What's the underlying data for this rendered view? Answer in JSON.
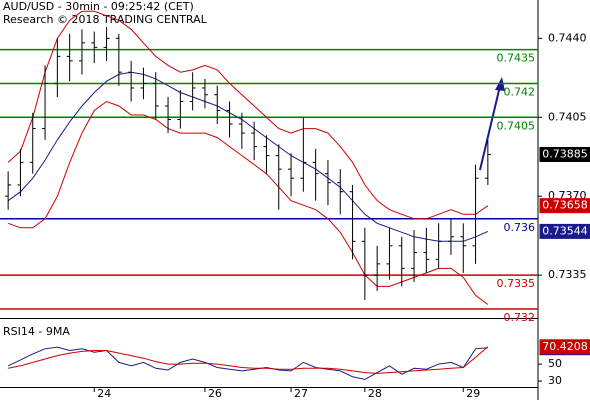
{
  "chart_data": [
    {
      "type": "ohlc",
      "title": "AUD/USD - 30min - 09:25:42 (CET)",
      "subtitle": "Research © 2018 TRADING CENTRAL",
      "color": "#000000",
      "open": [
        0.737,
        0.7375,
        0.7385,
        0.74,
        0.742,
        0.7432,
        0.743,
        0.7438,
        0.7436,
        0.744,
        0.7425,
        0.7418,
        0.742,
        0.741,
        0.7404,
        0.7412,
        0.7418,
        0.7415,
        0.7408,
        0.7402,
        0.7398,
        0.7392,
        0.7388,
        0.7382,
        0.7378,
        0.7385,
        0.738,
        0.7376,
        0.7372,
        0.735,
        0.7335,
        0.734,
        0.7348,
        0.7338,
        0.7345,
        0.7342,
        0.735,
        0.7352,
        0.7348,
        0.7378
      ],
      "high": [
        0.7381,
        0.7391,
        0.7407,
        0.7428,
        0.744,
        0.7442,
        0.7444,
        0.7443,
        0.7445,
        0.7442,
        0.743,
        0.7427,
        0.7425,
        0.7414,
        0.7417,
        0.7425,
        0.7422,
        0.7419,
        0.7412,
        0.7407,
        0.7403,
        0.7397,
        0.7393,
        0.7389,
        0.7405,
        0.7391,
        0.7386,
        0.7382,
        0.7375,
        0.7356,
        0.7348,
        0.7356,
        0.7352,
        0.7355,
        0.7356,
        0.7358,
        0.736,
        0.7358,
        0.7384,
        0.7395
      ],
      "low": [
        0.7364,
        0.737,
        0.738,
        0.7395,
        0.7414,
        0.7421,
        0.7424,
        0.7429,
        0.743,
        0.7419,
        0.7412,
        0.7413,
        0.7404,
        0.7398,
        0.74,
        0.7408,
        0.7409,
        0.7402,
        0.7396,
        0.7391,
        0.7386,
        0.738,
        0.7364,
        0.737,
        0.7372,
        0.7368,
        0.7366,
        0.7362,
        0.7342,
        0.7324,
        0.7328,
        0.7333,
        0.733,
        0.7332,
        0.7336,
        0.7338,
        0.7344,
        0.7336,
        0.734,
        0.7375
      ],
      "close": [
        0.7375,
        0.7385,
        0.74,
        0.742,
        0.7432,
        0.743,
        0.7438,
        0.7436,
        0.744,
        0.7425,
        0.7418,
        0.742,
        0.741,
        0.7404,
        0.7412,
        0.7418,
        0.7415,
        0.7408,
        0.7402,
        0.7398,
        0.7392,
        0.7388,
        0.7382,
        0.7378,
        0.7385,
        0.738,
        0.7376,
        0.7372,
        0.735,
        0.7335,
        0.734,
        0.7348,
        0.7338,
        0.7345,
        0.7342,
        0.735,
        0.7352,
        0.7348,
        0.7378,
        0.73885
      ],
      "label_last": true,
      "series": [
        {
          "color": "#1a1a8c",
          "label_last": true,
          "values": [
            0.7368,
            0.7372,
            0.7378,
            0.7386,
            0.7395,
            0.7403,
            0.741,
            0.7416,
            0.7421,
            0.7424,
            0.7425,
            0.7424,
            0.7422,
            0.7419,
            0.7416,
            0.7414,
            0.7412,
            0.741,
            0.7407,
            0.7404,
            0.74,
            0.7396,
            0.7392,
            0.7388,
            0.7385,
            0.7382,
            0.7378,
            0.7374,
            0.7368,
            0.7362,
            0.7358,
            0.7356,
            0.7354,
            0.7352,
            0.7351,
            0.735,
            0.735,
            0.735,
            0.7352,
            0.73544
          ]
        },
        {
          "color": "#cc0000",
          "label_last": true,
          "values": [
            0.7385,
            0.739,
            0.7405,
            0.7425,
            0.744,
            0.7448,
            0.7452,
            0.7452,
            0.745,
            0.7448,
            0.7444,
            0.7438,
            0.7432,
            0.7428,
            0.7425,
            0.7426,
            0.7428,
            0.7426,
            0.742,
            0.7415,
            0.741,
            0.7405,
            0.74,
            0.7398,
            0.74,
            0.74,
            0.7398,
            0.7392,
            0.7385,
            0.7375,
            0.7368,
            0.7364,
            0.7362,
            0.736,
            0.736,
            0.7362,
            0.7364,
            0.7362,
            0.7362,
            0.73658
          ]
        },
        {
          "color": "#cc0000",
          "values": [
            0.7358,
            0.7356,
            0.7356,
            0.736,
            0.737,
            0.7385,
            0.7398,
            0.7408,
            0.7412,
            0.741,
            0.7406,
            0.7406,
            0.7404,
            0.74,
            0.7398,
            0.7398,
            0.7398,
            0.7396,
            0.7392,
            0.7388,
            0.7384,
            0.738,
            0.7374,
            0.7368,
            0.7366,
            0.7364,
            0.736,
            0.7354,
            0.7345,
            0.7335,
            0.733,
            0.733,
            0.7332,
            0.7334,
            0.7336,
            0.7338,
            0.7338,
            0.7334,
            0.7326,
            0.7322
          ]
        }
      ],
      "levels": [
        {
          "value": 0.7435,
          "color": "#008000"
        },
        {
          "value": 0.742,
          "color": "#008000"
        },
        {
          "value": 0.7405,
          "color": "#008000"
        },
        {
          "value": 0.736,
          "color": "#0000a0"
        },
        {
          "value": 0.7335,
          "color": "#cc0000"
        },
        {
          "value": 0.732,
          "color": "#cc0000"
        }
      ],
      "ylim": [
        0.7316,
        0.7457
      ],
      "yticks": [
        0.7335,
        {
          "value": 0.737,
          "label": "0.7370"
        },
        0.7405,
        {
          "value": 0.744,
          "label": "0.7440"
        }
      ]
    },
    {
      "type": "line",
      "title": "RSI14 - 9MA",
      "categories": [
        null,
        null,
        null,
        null,
        null,
        null,
        null,
        "24",
        null,
        null,
        null,
        null,
        null,
        null,
        null,
        null,
        "26",
        null,
        null,
        null,
        null,
        null,
        null,
        "27",
        null,
        null,
        null,
        null,
        null,
        "28",
        null,
        null,
        null,
        null,
        null,
        null,
        null,
        "29",
        null,
        null
      ],
      "series": [
        {
          "color": "#1a1a8c",
          "label_last": true,
          "values": [
            48,
            55,
            62,
            68,
            70,
            66,
            68,
            64,
            66,
            52,
            48,
            52,
            45,
            43,
            52,
            56,
            52,
            46,
            44,
            42,
            44,
            46,
            43,
            42,
            52,
            46,
            44,
            42,
            35,
            32,
            40,
            48,
            38,
            45,
            44,
            50,
            52,
            46,
            68,
            69.3263
          ]
        },
        {
          "color": "#cc0000",
          "label_last": true,
          "values": [
            45,
            48,
            52,
            56,
            60,
            63,
            65,
            66,
            66,
            63,
            60,
            57,
            53,
            50,
            50,
            51,
            51,
            50,
            48,
            46,
            45,
            45,
            44,
            44,
            45,
            45,
            45,
            44,
            42,
            40,
            39,
            40,
            41,
            42,
            43,
            44,
            45,
            46,
            58,
            70.4208
          ]
        }
      ],
      "ylim": [
        23,
        102
      ],
      "yticks": [
        30,
        50
      ]
    }
  ]
}
